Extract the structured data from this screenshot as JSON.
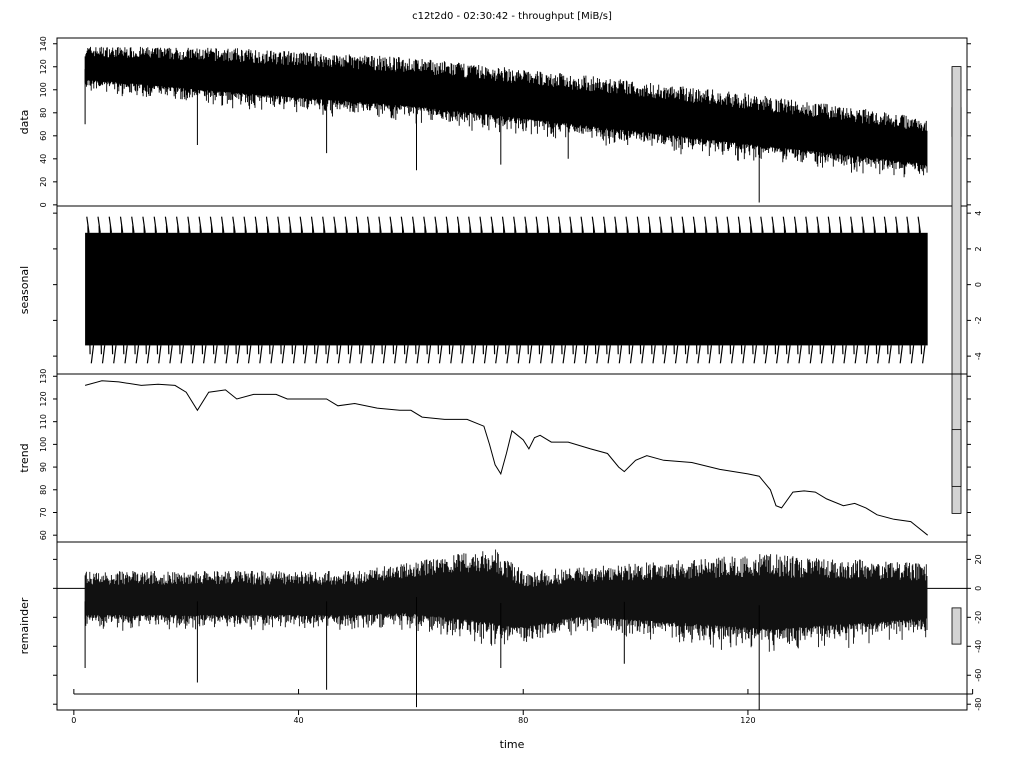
{
  "chart_data": {
    "type": "line",
    "title": "c12t2d0 - 02:30:42 - throughput [MiB/s]",
    "xlabel": "time",
    "xlim": [
      -3,
      159
    ],
    "x_range": [
      2,
      152
    ],
    "xticks": [
      0,
      40,
      80,
      120
    ],
    "xtick_labels": [
      "0",
      "40",
      "80",
      "120"
    ],
    "colors": {
      "line": "#000000",
      "range_bar": "#d3d3d3"
    },
    "panels": [
      {
        "name": "data",
        "ylabel": "data",
        "yaxis_side": "left",
        "ylim": [
          -1,
          145
        ],
        "yticks": [
          0,
          20,
          40,
          60,
          80,
          100,
          120,
          140
        ],
        "ytick_labels": [
          "0",
          "20",
          "40",
          "60",
          "80",
          "100",
          "120",
          "140"
        ],
        "upper": [
          [
            2,
            138
          ],
          [
            30,
            136
          ],
          [
            60,
            128
          ],
          [
            90,
            113
          ],
          [
            120,
            97
          ],
          [
            152,
            76
          ]
        ],
        "lower": [
          [
            2,
            98
          ],
          [
            30,
            82
          ],
          [
            60,
            70
          ],
          [
            90,
            53
          ],
          [
            120,
            36
          ],
          [
            152,
            20
          ]
        ],
        "spikes": [
          [
            2,
            70
          ],
          [
            22,
            52
          ],
          [
            45,
            45
          ],
          [
            61,
            30
          ],
          [
            76,
            35
          ],
          [
            88,
            40
          ],
          [
            122,
            2
          ]
        ]
      },
      {
        "name": "seasonal",
        "ylabel": "seasonal",
        "yaxis_side": "right",
        "ylim": [
          -5,
          4.4
        ],
        "yticks": [
          -4,
          -2,
          0,
          2,
          4
        ],
        "ytick_labels": [
          "-4",
          "-2",
          "0",
          "2",
          "4"
        ],
        "amplitude_high": 3.8,
        "amplitude_low": -4.4,
        "cycles": 75
      },
      {
        "name": "trend",
        "ylabel": "trend",
        "yaxis_side": "left",
        "ylim": [
          57,
          131
        ],
        "yticks": [
          60,
          70,
          80,
          90,
          100,
          110,
          120,
          130
        ],
        "ytick_labels": [
          "60",
          "70",
          "80",
          "90",
          "100",
          "110",
          "120",
          "130"
        ],
        "points": [
          [
            2,
            126
          ],
          [
            5,
            128
          ],
          [
            8,
            127.5
          ],
          [
            12,
            126
          ],
          [
            15,
            126.5
          ],
          [
            18,
            126
          ],
          [
            20,
            123
          ],
          [
            22,
            115
          ],
          [
            24,
            123
          ],
          [
            27,
            124
          ],
          [
            29,
            120
          ],
          [
            32,
            122
          ],
          [
            36,
            122
          ],
          [
            38,
            120
          ],
          [
            42,
            120
          ],
          [
            45,
            120
          ],
          [
            47,
            117
          ],
          [
            50,
            118
          ],
          [
            54,
            116
          ],
          [
            58,
            115
          ],
          [
            60,
            115
          ],
          [
            62,
            112
          ],
          [
            66,
            111
          ],
          [
            70,
            111
          ],
          [
            73,
            108
          ],
          [
            74,
            100
          ],
          [
            75,
            91
          ],
          [
            76,
            87
          ],
          [
            77,
            96
          ],
          [
            78,
            106
          ],
          [
            80,
            102
          ],
          [
            81,
            98
          ],
          [
            82,
            103
          ],
          [
            83,
            104
          ],
          [
            85,
            101
          ],
          [
            88,
            101
          ],
          [
            92,
            98
          ],
          [
            95,
            96
          ],
          [
            97,
            90
          ],
          [
            98,
            88
          ],
          [
            100,
            93
          ],
          [
            102,
            95
          ],
          [
            105,
            93
          ],
          [
            110,
            92
          ],
          [
            115,
            89
          ],
          [
            120,
            87
          ],
          [
            122,
            86
          ],
          [
            124,
            80
          ],
          [
            125,
            73
          ],
          [
            126,
            72
          ],
          [
            128,
            79
          ],
          [
            130,
            79.5
          ],
          [
            132,
            79
          ],
          [
            134,
            76
          ],
          [
            137,
            73
          ],
          [
            139,
            74
          ],
          [
            141,
            72
          ],
          [
            143,
            69
          ],
          [
            146,
            67
          ],
          [
            149,
            66
          ],
          [
            150,
            64
          ],
          [
            152,
            60
          ]
        ]
      },
      {
        "name": "remainder",
        "ylabel": "remainder",
        "yaxis_side": "right",
        "ylim": [
          -84,
          32
        ],
        "yticks": [
          -80,
          -60,
          -40,
          -20,
          0,
          20
        ],
        "ytick_labels": [
          "-80",
          "-60",
          "-40",
          "-20",
          "0",
          "20"
        ],
        "zero_line": 0,
        "upper": [
          [
            2,
            12
          ],
          [
            50,
            12
          ],
          [
            75,
            28
          ],
          [
            80,
            12
          ],
          [
            123,
            24
          ],
          [
            152,
            17
          ]
        ],
        "lower": [
          [
            2,
            -30
          ],
          [
            60,
            -30
          ],
          [
            76,
            -45
          ],
          [
            90,
            -32
          ],
          [
            124,
            -48
          ],
          [
            152,
            -35
          ]
        ],
        "spikes": [
          [
            2,
            -55
          ],
          [
            22,
            -65
          ],
          [
            45,
            -70
          ],
          [
            61,
            -82
          ],
          [
            76,
            -55
          ],
          [
            98,
            -52
          ],
          [
            122,
            -84
          ]
        ]
      }
    ]
  }
}
